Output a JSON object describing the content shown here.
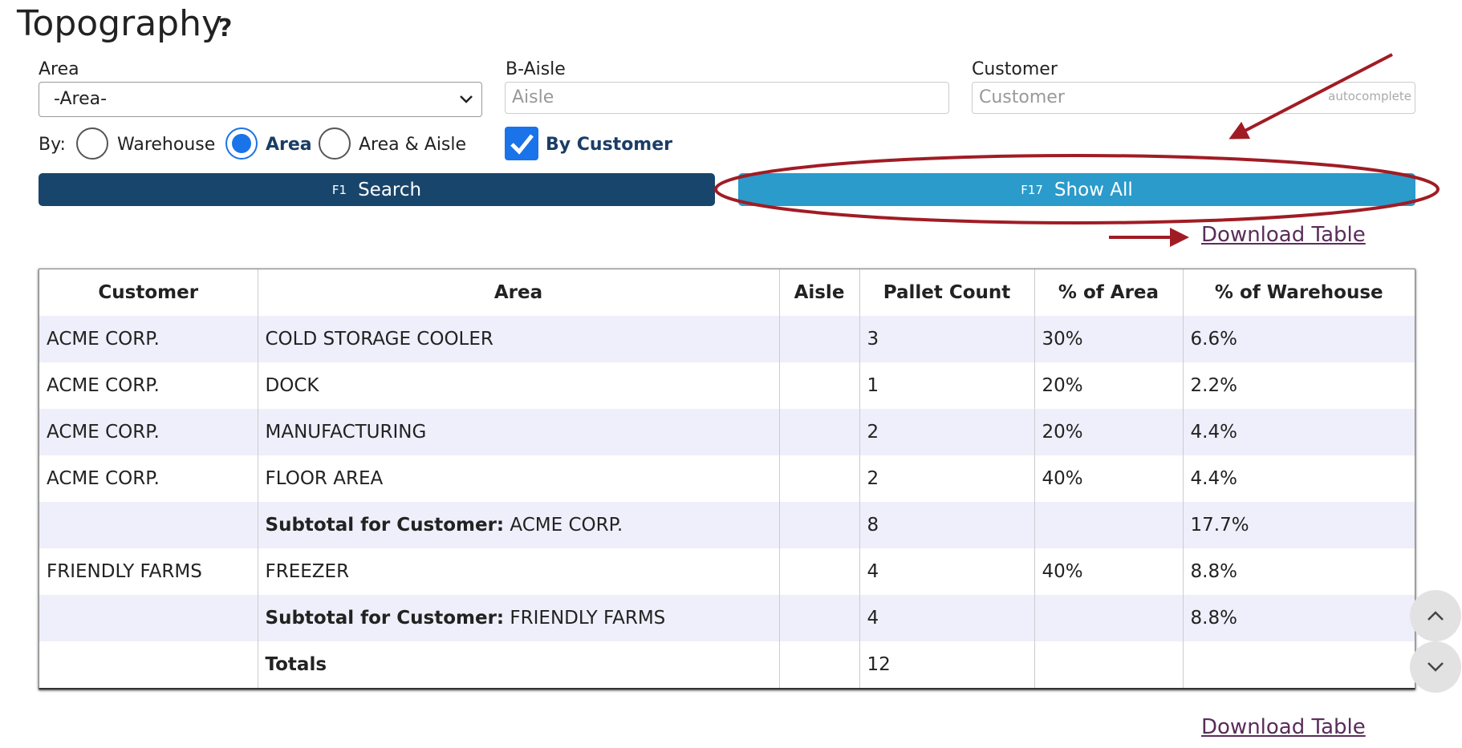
{
  "header": {
    "title": "Topography",
    "help": "?"
  },
  "filters": {
    "area": {
      "label": "Area",
      "selected": "-Area-"
    },
    "aisle": {
      "label": "B-Aisle",
      "placeholder": "Aisle"
    },
    "customer": {
      "label": "Customer",
      "placeholder": "Customer",
      "hint": "autocomplete"
    }
  },
  "group_by": {
    "label": "By:",
    "options": [
      "Warehouse",
      "Area",
      "Area & Aisle"
    ],
    "selected": 1,
    "by_customer": {
      "label": "By Customer",
      "checked": true
    }
  },
  "buttons": {
    "search": {
      "key": "F1",
      "label": "Search"
    },
    "show_all": {
      "key": "F17",
      "label": "Show All"
    }
  },
  "download_link": "Download Table",
  "table": {
    "headers": [
      "Customer",
      "Area",
      "Aisle",
      "Pallet Count",
      "% of Area",
      "% of Warehouse"
    ],
    "rows": [
      [
        "ACME CORP.",
        "COLD STORAGE COOLER",
        null,
        "3",
        "30%",
        "6.6%"
      ],
      [
        "ACME CORP.",
        "DOCK",
        null,
        "1",
        "20%",
        "2.2%"
      ],
      [
        "ACME CORP.",
        "MANUFACTURING",
        null,
        "2",
        "20%",
        "4.4%"
      ],
      [
        "ACME CORP.",
        "FLOOR AREA",
        null,
        "2",
        "40%",
        "4.4%"
      ],
      [
        null,
        {
          "label": "Subtotal for Customer:",
          "value": "ACME CORP."
        },
        null,
        "8",
        null,
        "17.7%"
      ],
      [
        "FRIENDLY FARMS",
        "FREEZER",
        null,
        "4",
        "40%",
        "8.8%"
      ],
      [
        null,
        {
          "label": "Subtotal for Customer:",
          "value": "FRIENDLY FARMS"
        },
        null,
        "4",
        null,
        "8.8%"
      ],
      [
        null,
        {
          "label": "Totals"
        },
        null,
        "12",
        null,
        null
      ]
    ]
  }
}
